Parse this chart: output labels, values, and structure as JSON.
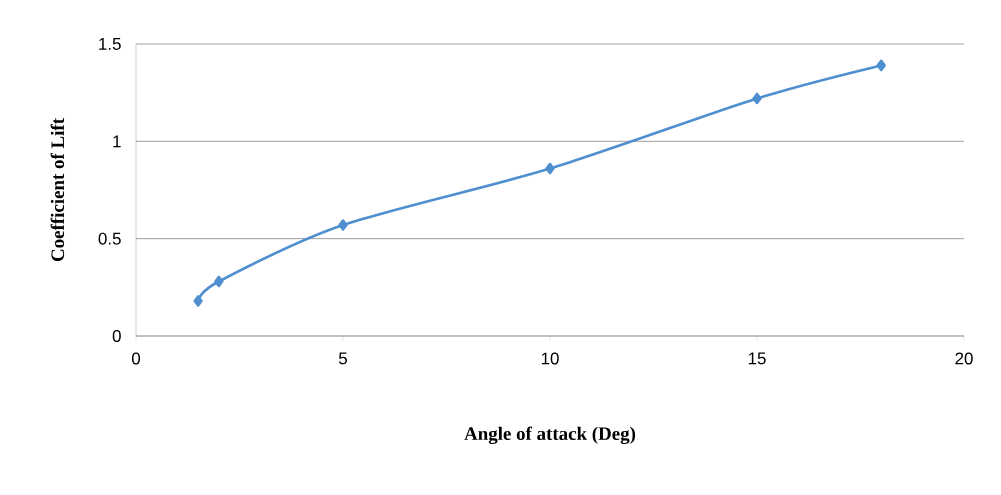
{
  "chart_data": {
    "type": "line",
    "xlabel": "Angle of attack (Deg)",
    "ylabel": "Coefficient of Lift",
    "x": [
      1.5,
      2,
      5,
      10,
      15,
      18
    ],
    "series": [
      {
        "color": "#4f8fd0",
        "values": [
          0.18,
          0.28,
          0.57,
          0.86,
          1.22,
          1.39
        ]
      }
    ],
    "xlim": [
      0,
      20
    ],
    "xticks": [
      0,
      5,
      10,
      15,
      20
    ],
    "ylim": [
      0,
      1.5
    ],
    "yticks": [
      0,
      0.5,
      1,
      1.5
    ],
    "grid": "y",
    "marker": "diamond",
    "line_style": "solid"
  }
}
